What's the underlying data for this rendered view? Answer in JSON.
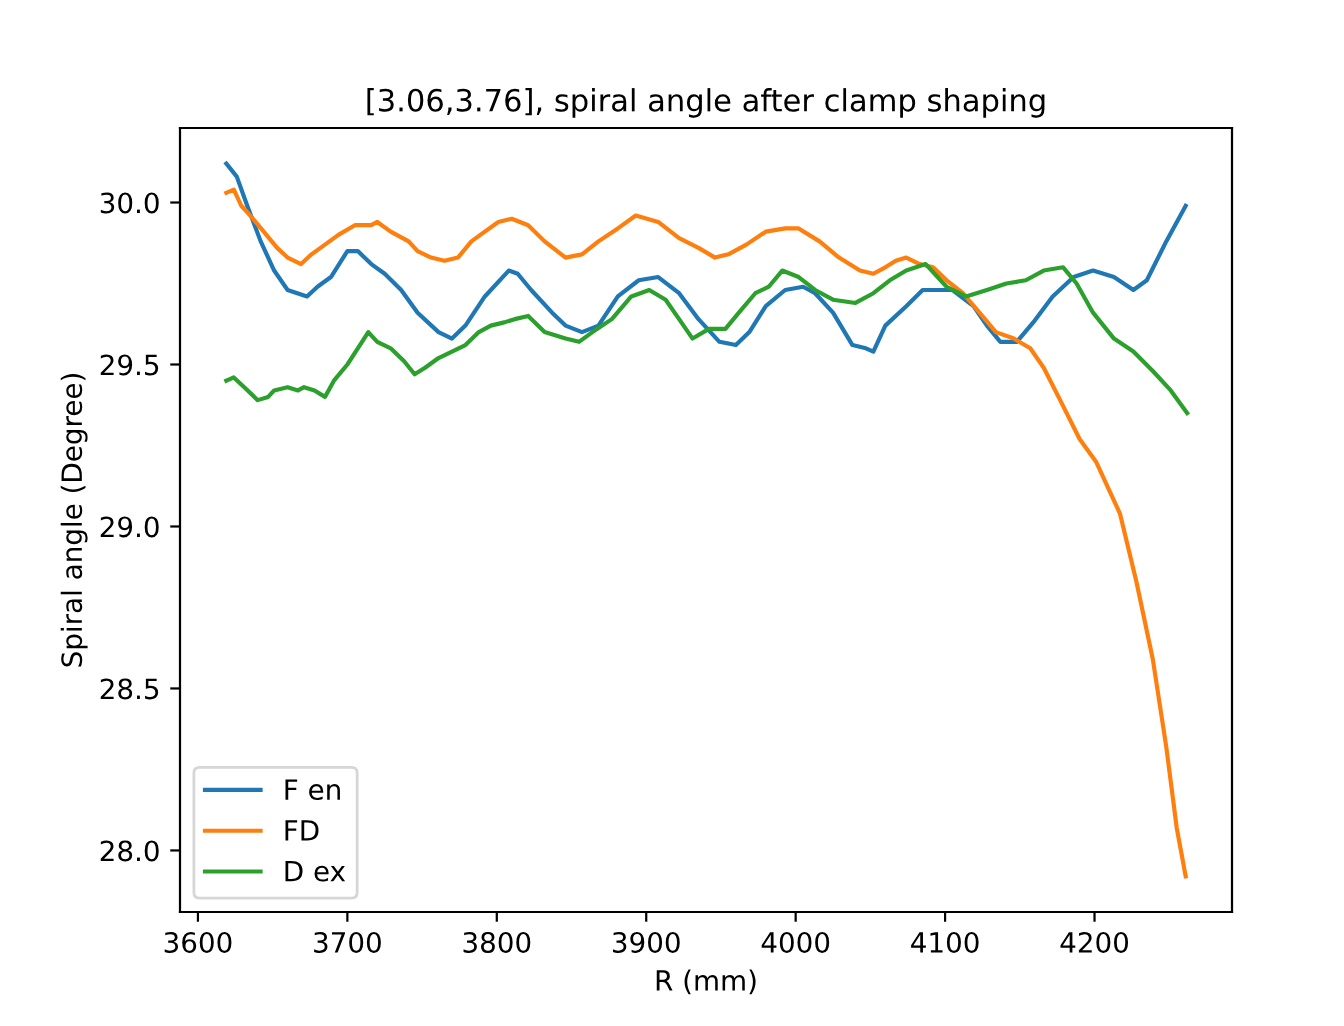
{
  "chart_data": {
    "type": "line",
    "title": "[3.06,3.76], spiral angle after clamp shaping",
    "xlabel": "R (mm)",
    "ylabel": "Spiral angle (Degree)",
    "xlim": [
      3588,
      4292
    ],
    "ylim": [
      27.81,
      30.23
    ],
    "xticks": [
      3600,
      3700,
      3800,
      3900,
      4000,
      4100,
      4200
    ],
    "yticks": [
      {
        "value": 28.0,
        "label": "28.0"
      },
      {
        "value": 28.5,
        "label": "28.5"
      },
      {
        "value": 29.0,
        "label": "29.0"
      },
      {
        "value": 29.5,
        "label": "29.5"
      },
      {
        "value": 30.0,
        "label": "30.0"
      }
    ],
    "grid": false,
    "legend": "lower left",
    "line_style": "solid",
    "marker": "none",
    "series": [
      {
        "name": "F en",
        "color": "#1f77b4",
        "x": [
          3619,
          3626,
          3633,
          3642,
          3651,
          3660,
          3673,
          3680,
          3689,
          3700,
          3707,
          3716,
          3725,
          3736,
          3747,
          3761,
          3770,
          3779,
          3792,
          3808,
          3814,
          3823,
          3837,
          3846,
          3857,
          3868,
          3881,
          3895,
          3908,
          3922,
          3935,
          3949,
          3960,
          3969,
          3980,
          3993,
          4005,
          4013,
          4025,
          4038,
          4047,
          4052,
          4060,
          4074,
          4085,
          4105,
          4119,
          4128,
          4137,
          4148,
          4159,
          4172,
          4186,
          4199,
          4213,
          4226,
          4235,
          4248,
          4261
        ],
        "values": [
          30.12,
          30.08,
          29.99,
          29.88,
          29.79,
          29.73,
          29.71,
          29.74,
          29.77,
          29.85,
          29.85,
          29.81,
          29.78,
          29.73,
          29.66,
          29.6,
          29.58,
          29.62,
          29.71,
          29.79,
          29.78,
          29.73,
          29.66,
          29.62,
          29.6,
          29.62,
          29.71,
          29.76,
          29.77,
          29.72,
          29.64,
          29.57,
          29.56,
          29.6,
          29.68,
          29.73,
          29.74,
          29.72,
          29.66,
          29.56,
          29.55,
          29.54,
          29.62,
          29.68,
          29.73,
          29.73,
          29.68,
          29.62,
          29.57,
          29.57,
          29.63,
          29.71,
          29.77,
          29.79,
          29.77,
          29.73,
          29.76,
          29.88,
          29.99
        ]
      },
      {
        "name": "FD",
        "color": "#ff7f0e",
        "x": [
          3619,
          3624,
          3629,
          3635,
          3644,
          3653,
          3660,
          3669,
          3676,
          3685,
          3694,
          3705,
          3716,
          3720,
          3729,
          3741,
          3747,
          3756,
          3765,
          3774,
          3783,
          3792,
          3801,
          3810,
          3821,
          3832,
          3846,
          3857,
          3868,
          3881,
          3893,
          3908,
          3922,
          3935,
          3946,
          3955,
          3967,
          3980,
          3993,
          4002,
          4016,
          4029,
          4043,
          4052,
          4060,
          4067,
          4074,
          4083,
          4092,
          4101,
          4112,
          4123,
          4134,
          4146,
          4157,
          4166,
          4177,
          4190,
          4201,
          4217,
          4228,
          4239,
          4248,
          4255,
          4261
        ],
        "values": [
          30.03,
          30.04,
          29.99,
          29.96,
          29.91,
          29.86,
          29.83,
          29.81,
          29.84,
          29.87,
          29.9,
          29.93,
          29.93,
          29.94,
          29.91,
          29.88,
          29.85,
          29.83,
          29.82,
          29.83,
          29.88,
          29.91,
          29.94,
          29.95,
          29.93,
          29.88,
          29.83,
          29.84,
          29.88,
          29.92,
          29.96,
          29.94,
          29.89,
          29.86,
          29.83,
          29.84,
          29.87,
          29.91,
          29.92,
          29.92,
          29.88,
          29.83,
          29.79,
          29.78,
          29.8,
          29.82,
          29.83,
          29.81,
          29.8,
          29.76,
          29.72,
          29.66,
          29.6,
          29.58,
          29.55,
          29.49,
          29.39,
          29.27,
          29.2,
          29.04,
          28.83,
          28.59,
          28.32,
          28.07,
          27.92
        ]
      },
      {
        "name": "D ex",
        "color": "#2ca02c",
        "x": [
          3619,
          3624,
          3631,
          3640,
          3647,
          3651,
          3660,
          3667,
          3671,
          3678,
          3685,
          3691,
          3700,
          3707,
          3714,
          3720,
          3729,
          3738,
          3745,
          3752,
          3761,
          3770,
          3779,
          3788,
          3796,
          3805,
          3812,
          3821,
          3832,
          3846,
          3855,
          3864,
          3877,
          3890,
          3902,
          3913,
          3922,
          3931,
          3942,
          3953,
          3962,
          3973,
          3982,
          3991,
          4002,
          4013,
          4025,
          4040,
          4052,
          4063,
          4074,
          4087,
          4101,
          4114,
          4128,
          4141,
          4154,
          4166,
          4179,
          4188,
          4199,
          4213,
          4226,
          4239,
          4251,
          4262
        ],
        "values": [
          29.45,
          29.46,
          29.43,
          29.39,
          29.4,
          29.42,
          29.43,
          29.42,
          29.43,
          29.42,
          29.4,
          29.45,
          29.5,
          29.55,
          29.6,
          29.57,
          29.55,
          29.51,
          29.47,
          29.49,
          29.52,
          29.54,
          29.56,
          29.6,
          29.62,
          29.63,
          29.64,
          29.65,
          29.6,
          29.58,
          29.57,
          29.6,
          29.64,
          29.71,
          29.73,
          29.7,
          29.64,
          29.58,
          29.61,
          29.61,
          29.66,
          29.72,
          29.74,
          29.79,
          29.77,
          29.73,
          29.7,
          29.69,
          29.72,
          29.76,
          29.79,
          29.81,
          29.74,
          29.71,
          29.73,
          29.75,
          29.76,
          29.79,
          29.8,
          29.75,
          29.66,
          29.58,
          29.54,
          29.48,
          29.42,
          29.35
        ]
      }
    ]
  }
}
